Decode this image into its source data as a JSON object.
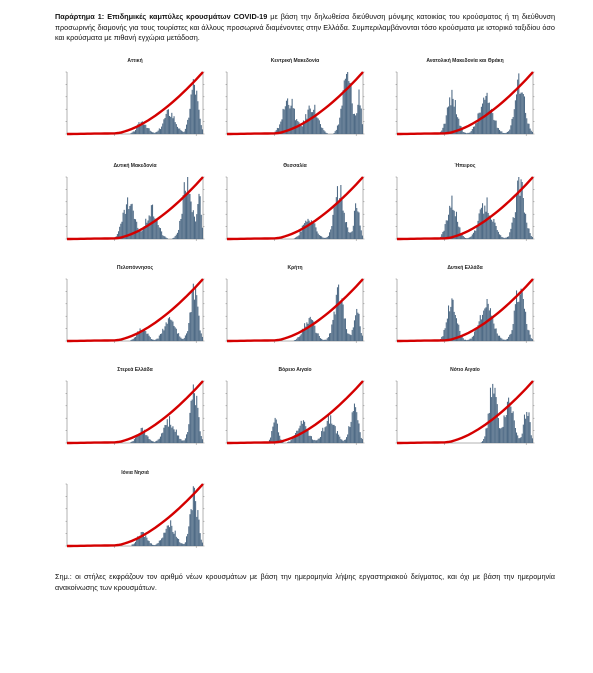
{
  "header": {
    "label": "Παράρτημα 1:",
    "bold_text": "Επιδημικές καμπύλες κρουσμάτων COVID-19",
    "text": "με βάση την δηλωθείσα διεύθυνση μόνιμης κατοικίας του κρούσματος ή τη διεύθυνση προσωρινής διαμονής για τους τουρίστες και άλλους προσωρινά διαμένοντες στην Ελλάδα. Συμπεριλαμβάνονται τόσο κρούσματα με ιστορικό ταξιδίου όσο και κρούσματα με πιθανή εγχώρια μετάδοση."
  },
  "note": "Σημ.: οι στήλες εκφράζουν τον αριθμό νέων κρουσμάτων με βάση την ημερομηνία λήψης εργαστηριακού δείγματος, και όχι με βάση την ημερομηνία ανακοίνωσης των κρουσμάτων.",
  "colors": {
    "bars": "#4f6b86",
    "line": "#d40000"
  },
  "panels": [
    {
      "title": "Αττική",
      "shape": "a"
    },
    {
      "title": "Κεντρική Μακεδονία",
      "shape": "b"
    },
    {
      "title": "Ανατολική Μακεδονία και Θράκη",
      "shape": "c"
    },
    {
      "title": "Δυτική Μακεδονία",
      "shape": "b"
    },
    {
      "title": "Θεσσαλία",
      "shape": "d"
    },
    {
      "title": "Ήπειρος",
      "shape": "c"
    },
    {
      "title": "Πελοπόννησος",
      "shape": "a"
    },
    {
      "title": "Κρήτη",
      "shape": "d"
    },
    {
      "title": "Δυτική Ελλάδα",
      "shape": "c"
    },
    {
      "title": "Στερεά Ελλάδα",
      "shape": "a"
    },
    {
      "title": "Βόρειο Αιγαίο",
      "shape": "e"
    },
    {
      "title": "Νότιο Αιγαίο",
      "shape": "f"
    },
    {
      "title": "Ιόνια Νησιά",
      "shape": "a"
    }
  ]
}
